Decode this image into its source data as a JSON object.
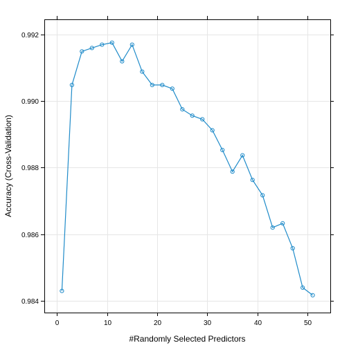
{
  "chart_data": {
    "type": "line",
    "title": "",
    "xlabel": "#Randomly Selected Predictors",
    "ylabel": "Accuracy (Cross-Validation)",
    "xlim": [
      -2.5,
      54.5
    ],
    "ylim": [
      0.98365,
      0.99245
    ],
    "x_ticks": [
      0,
      10,
      20,
      30,
      40,
      50
    ],
    "x_tick_labels": [
      "0",
      "10",
      "20",
      "30",
      "40",
      "50"
    ],
    "y_ticks": [
      0.984,
      0.986,
      0.988,
      0.99,
      0.992
    ],
    "y_tick_labels": [
      "0.984",
      "0.986",
      "0.988",
      "0.990",
      "0.992"
    ],
    "grid": true,
    "series": [
      {
        "color": "#1F8BC9",
        "marker": "circle-open",
        "x": [
          1,
          3,
          5,
          7,
          9,
          11,
          13,
          15,
          17,
          19,
          21,
          23,
          25,
          27,
          29,
          31,
          33,
          35,
          37,
          39,
          41,
          43,
          45,
          47,
          49,
          51
        ],
        "y": [
          0.9843,
          0.99048,
          0.99149,
          0.99159,
          0.99169,
          0.99175,
          0.99119,
          0.99169,
          0.99088,
          0.99048,
          0.99048,
          0.99037,
          0.98975,
          0.98956,
          0.98945,
          0.98912,
          0.98853,
          0.98788,
          0.98837,
          0.98763,
          0.98717,
          0.9862,
          0.98633,
          0.98558,
          0.9844,
          0.98417
        ]
      }
    ]
  }
}
